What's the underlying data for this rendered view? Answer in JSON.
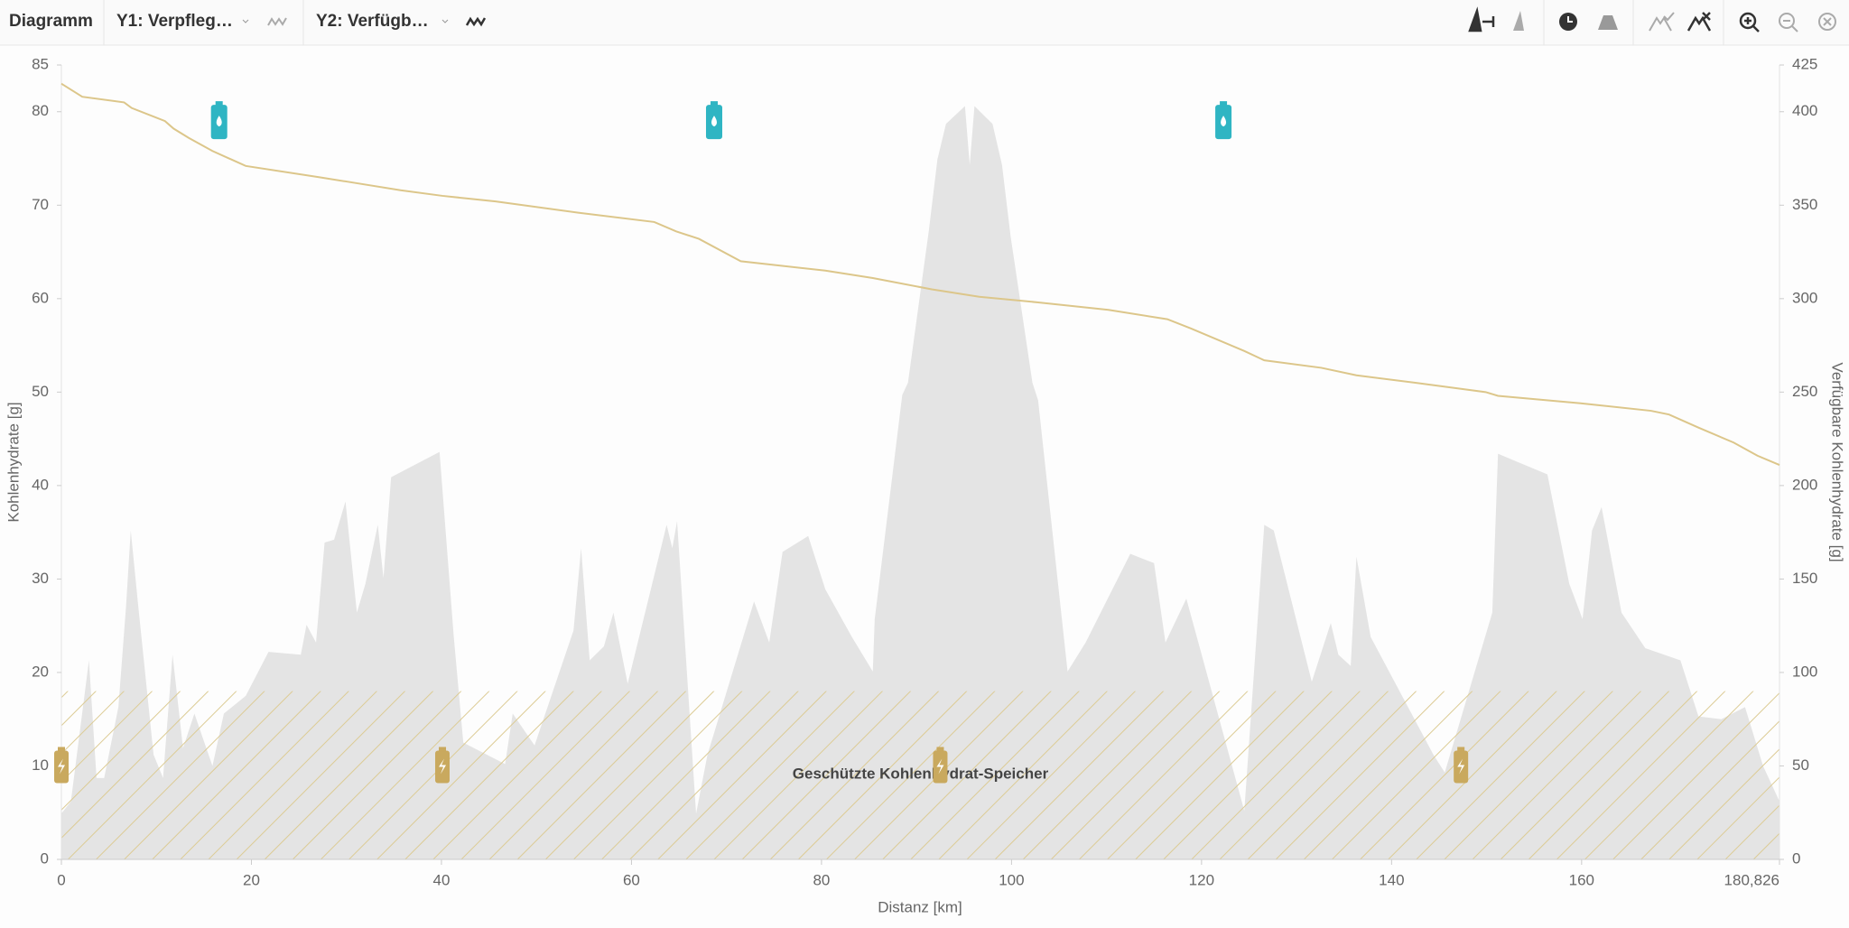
{
  "toolbar": {
    "title": "Diagramm",
    "y1": "Y1: Verpfleg…",
    "y2": "Y2: Verfügb…"
  },
  "chart_data": {
    "type": "line",
    "x_label": "Distanz [km]",
    "y_label": "Kohlenhydrate [g]",
    "y2_label": "Verfügbare Kohlenhydrate [g]",
    "xlim": [
      0,
      180.826
    ],
    "xticks": [
      0,
      20,
      40,
      60,
      80,
      100,
      120,
      140,
      160,
      {
        "value": 180.826,
        "label": "180,826"
      }
    ],
    "ylim": [
      0,
      85
    ],
    "yticks": [
      0,
      10,
      20,
      30,
      40,
      50,
      60,
      70,
      80,
      85
    ],
    "y2lim": [
      0,
      425
    ],
    "y2ticks": [
      0,
      50,
      100,
      150,
      200,
      250,
      300,
      350,
      400,
      425
    ],
    "series": [
      {
        "color": "#dcc68a",
        "axis": "y2",
        "x": [
          0,
          2.2,
          6.6,
          7.4,
          10.9,
          11.8,
          13.4,
          15.9,
          19.4,
          27.1,
          30.8,
          35.7,
          40.1,
          45.7,
          54.4,
          62.4,
          64.7,
          67.1,
          71.5,
          80.4,
          85.4,
          91.6,
          96.6,
          102.8,
          110.2,
          116.4,
          118.9,
          124.5,
          126.6,
          132.6,
          136.3,
          142.5,
          149.9,
          151.2,
          159.9,
          167.3,
          169.2,
          172.3,
          176.0,
          178.5,
          180.826
        ],
        "values": [
          415,
          408,
          405,
          402,
          395,
          391,
          386,
          379,
          371,
          365,
          362,
          358,
          355,
          352,
          346,
          341,
          336,
          332,
          320,
          315,
          311,
          305,
          301,
          298,
          294,
          289,
          284,
          272,
          267,
          263,
          259,
          255,
          250,
          248,
          244,
          240,
          238,
          231,
          223,
          216,
          211
        ]
      }
    ],
    "profile": {
      "color": "#e4e4e4",
      "x": [
        0,
        1.0,
        2.9,
        3.7,
        4.5,
        6.0,
        6.8,
        7.3,
        8.1,
        9.7,
        10.7,
        11.7,
        12.8,
        14.0,
        15.9,
        17.1,
        19.4,
        21.8,
        25.2,
        25.8,
        26.8,
        27.7,
        28.7,
        29.9,
        31.1,
        32.0,
        33.3,
        33.9,
        34.7,
        39.8,
        41.3,
        42.3,
        46.7,
        47.5,
        49.8,
        53.9,
        54.7,
        55.6,
        57.1,
        58.1,
        59.6,
        63.7,
        64.3,
        64.8,
        66.8,
        68.0,
        72.9,
        74.5,
        75.9,
        78.6,
        80.4,
        83.2,
        85.4,
        85.6,
        88.5,
        89.1,
        91.3,
        92.2,
        93.1,
        95.1,
        95.6,
        96.1,
        98.0,
        99.0,
        99.9,
        102.2,
        102.8,
        105.9,
        107.8,
        112.5,
        115.0,
        116.2,
        118.4,
        124.5,
        126.6,
        127.6,
        131.6,
        133.6,
        134.4,
        135.7,
        136.3,
        137.8,
        144.4,
        145.6,
        150.6,
        151.2,
        156.4,
        158.7,
        160.1,
        161.1,
        162.1,
        164.2,
        166.7,
        170.4,
        172.3,
        174.7,
        177.2,
        179.1,
        180.826
      ],
      "values": [
        4.9,
        6.2,
        21.3,
        8.7,
        8.7,
        16.3,
        27.0,
        35.2,
        27.0,
        11.2,
        8.7,
        21.9,
        11.9,
        15.6,
        10.0,
        15.6,
        17.5,
        22.2,
        21.9,
        25.1,
        23.2,
        33.9,
        34.2,
        38.3,
        26.4,
        29.5,
        35.8,
        30.1,
        40.9,
        43.6,
        23.8,
        12.5,
        10.2,
        15.6,
        12.2,
        24.5,
        33.3,
        21.3,
        22.8,
        26.4,
        18.8,
        35.8,
        33.3,
        36.2,
        4.9,
        11.2,
        27.6,
        23.2,
        32.9,
        34.6,
        28.9,
        23.8,
        20.1,
        25.7,
        49.7,
        51.0,
        67.3,
        74.9,
        78.7,
        80.6,
        74.3,
        80.6,
        78.7,
        74.3,
        66.7,
        51.0,
        49.1,
        20.1,
        23.2,
        32.7,
        31.7,
        23.2,
        27.9,
        5.2,
        35.8,
        35.2,
        19.0,
        25.3,
        21.9,
        20.7,
        32.4,
        23.8,
        11.2,
        9.3,
        26.4,
        43.4,
        41.2,
        29.5,
        25.7,
        35.2,
        37.7,
        26.4,
        22.6,
        21.3,
        15.3,
        15.0,
        16.3,
        10.0,
        6.2
      ]
    },
    "markers": {
      "drinks": {
        "color": "#2fb5c3",
        "x": [
          16.6,
          68.7,
          122.3
        ],
        "values": [
          79,
          79,
          79
        ]
      },
      "gels": {
        "color": "#c9a95e",
        "x": [
          0,
          40.1,
          92.5,
          147.3
        ],
        "values": [
          10,
          10,
          10,
          10
        ]
      }
    },
    "protected_zone": {
      "label": "Geschützte Kohlenhydrat-Speicher",
      "value": 18,
      "color": "#dccb94"
    }
  }
}
